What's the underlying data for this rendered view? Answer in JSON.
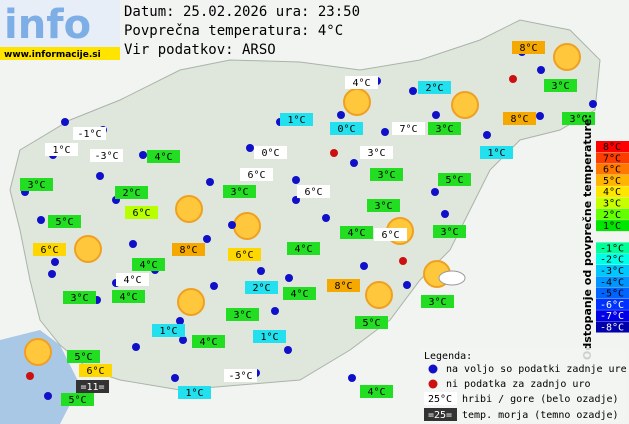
{
  "header": {
    "date_line": "Datum: 25.02.2026 ura: 23:50",
    "average": "Povprečna temperatura: 4°C",
    "source": "Vir podatkov: ARSO"
  },
  "logo": {
    "title": "info",
    "url": "www.informacije.si"
  },
  "stations": [
    {
      "label": "8°C",
      "color": "#f5a800"
    },
    {
      "label": "4°C",
      "color": "#ffffff"
    },
    {
      "label": "2°C",
      "color": "#22e0ee"
    },
    {
      "label": "3°C",
      "color": "#22dd22"
    },
    {
      "label": "1°C",
      "color": "#22e0ee"
    },
    {
      "label": "8°C",
      "color": "#f5a800"
    },
    {
      "label": "3°C",
      "color": "#22dd22"
    },
    {
      "label": "-1°C",
      "color": "#ffffff"
    },
    {
      "label": "0°C",
      "color": "#22e0ee"
    },
    {
      "label": "7°C",
      "color": "#ffffff"
    },
    {
      "label": "3°C",
      "color": "#22dd22"
    },
    {
      "label": "1°C",
      "color": "#ffffff"
    },
    {
      "label": "-3°C",
      "color": "#ffffff"
    },
    {
      "label": "4°C",
      "color": "#22dd22"
    },
    {
      "label": "0°C",
      "color": "#ffffff"
    },
    {
      "label": "3°C",
      "color": "#ffffff"
    },
    {
      "label": "1°C",
      "color": "#22e0ee"
    },
    {
      "label": "3°C",
      "color": "#22dd22"
    },
    {
      "label": "3°C",
      "color": "#22dd22"
    },
    {
      "label": "6°C",
      "color": "#ffffff"
    },
    {
      "label": "5°C",
      "color": "#22dd22"
    },
    {
      "label": "2°C",
      "color": "#22dd22"
    },
    {
      "label": "3°C",
      "color": "#22dd22"
    },
    {
      "label": "6°C",
      "color": "#ffffff"
    },
    {
      "label": "3°C",
      "color": "#22dd22"
    },
    {
      "label": "6°C",
      "color": "#b8ff00"
    },
    {
      "label": "5°C",
      "color": "#22dd22"
    },
    {
      "label": "4°C",
      "color": "#22dd22"
    },
    {
      "label": "6°C",
      "color": "#ffffff"
    },
    {
      "label": "3°C",
      "color": "#22dd22"
    },
    {
      "label": "6°C",
      "color": "#ffd700"
    },
    {
      "label": "8°C",
      "color": "#f5a800"
    },
    {
      "label": "4°C",
      "color": "#22dd22"
    },
    {
      "label": "6°C",
      "color": "#ffd700"
    },
    {
      "label": "4°C",
      "color": "#22dd22"
    },
    {
      "label": "4°C",
      "color": "#ffffff"
    },
    {
      "label": "2°C",
      "color": "#22e0ee"
    },
    {
      "label": "8°C",
      "color": "#f5a800"
    },
    {
      "label": "3°C",
      "color": "#22dd22"
    },
    {
      "label": "4°C",
      "color": "#22dd22"
    },
    {
      "label": "4°C",
      "color": "#22dd22"
    },
    {
      "label": "3°C",
      "color": "#22dd22"
    },
    {
      "label": "3°C",
      "color": "#22dd22"
    },
    {
      "label": "5°C",
      "color": "#22dd22"
    },
    {
      "label": "1°C",
      "color": "#22e0ee"
    },
    {
      "label": "4°C",
      "color": "#22dd22"
    },
    {
      "label": "1°C",
      "color": "#22e0ee"
    },
    {
      "label": "5°C",
      "color": "#22dd22"
    },
    {
      "label": "6°C",
      "color": "#ffd700"
    },
    {
      "label": "=11=",
      "color": "#333333"
    },
    {
      "label": "-3°C",
      "color": "#ffffff"
    },
    {
      "label": "1°C",
      "color": "#22e0ee"
    },
    {
      "label": "5°C",
      "color": "#22dd22"
    },
    {
      "label": "4°C",
      "color": "#22dd22"
    }
  ],
  "scale": {
    "title": "Odstopanje od povprečne temperature:",
    "items": [
      {
        "label": "8°C",
        "color": "#ff0000"
      },
      {
        "label": "7°C",
        "color": "#ff3c00"
      },
      {
        "label": "6°C",
        "color": "#ff7800"
      },
      {
        "label": "5°C",
        "color": "#ffb400"
      },
      {
        "label": "4°C",
        "color": "#ffe600"
      },
      {
        "label": "3°C",
        "color": "#c8ff00"
      },
      {
        "label": "2°C",
        "color": "#64ff00"
      },
      {
        "label": "1°C",
        "color": "#00e600"
      },
      {
        "label": "-1°C",
        "color": "#00ff96"
      },
      {
        "label": "-2°C",
        "color": "#00ffe6"
      },
      {
        "label": "-3°C",
        "color": "#00c8ff"
      },
      {
        "label": "-4°C",
        "color": "#0096ff"
      },
      {
        "label": "-5°C",
        "color": "#0064ff"
      },
      {
        "label": "-6°C",
        "color": "#0032ff"
      },
      {
        "label": "-7°C",
        "color": "#0000e6"
      },
      {
        "label": "-8°C",
        "color": "#0000aa"
      }
    ]
  },
  "legend": {
    "title": "Legenda:",
    "available": "na voljo so podatki zadnje ure",
    "missing": "ni podatka za zadnjo uro",
    "mountain_sample": "25°C",
    "mountain": "hribi / gore (belo ozadje)",
    "sea_sample": "=25=",
    "sea": "temp. morja (temno ozadje)"
  }
}
